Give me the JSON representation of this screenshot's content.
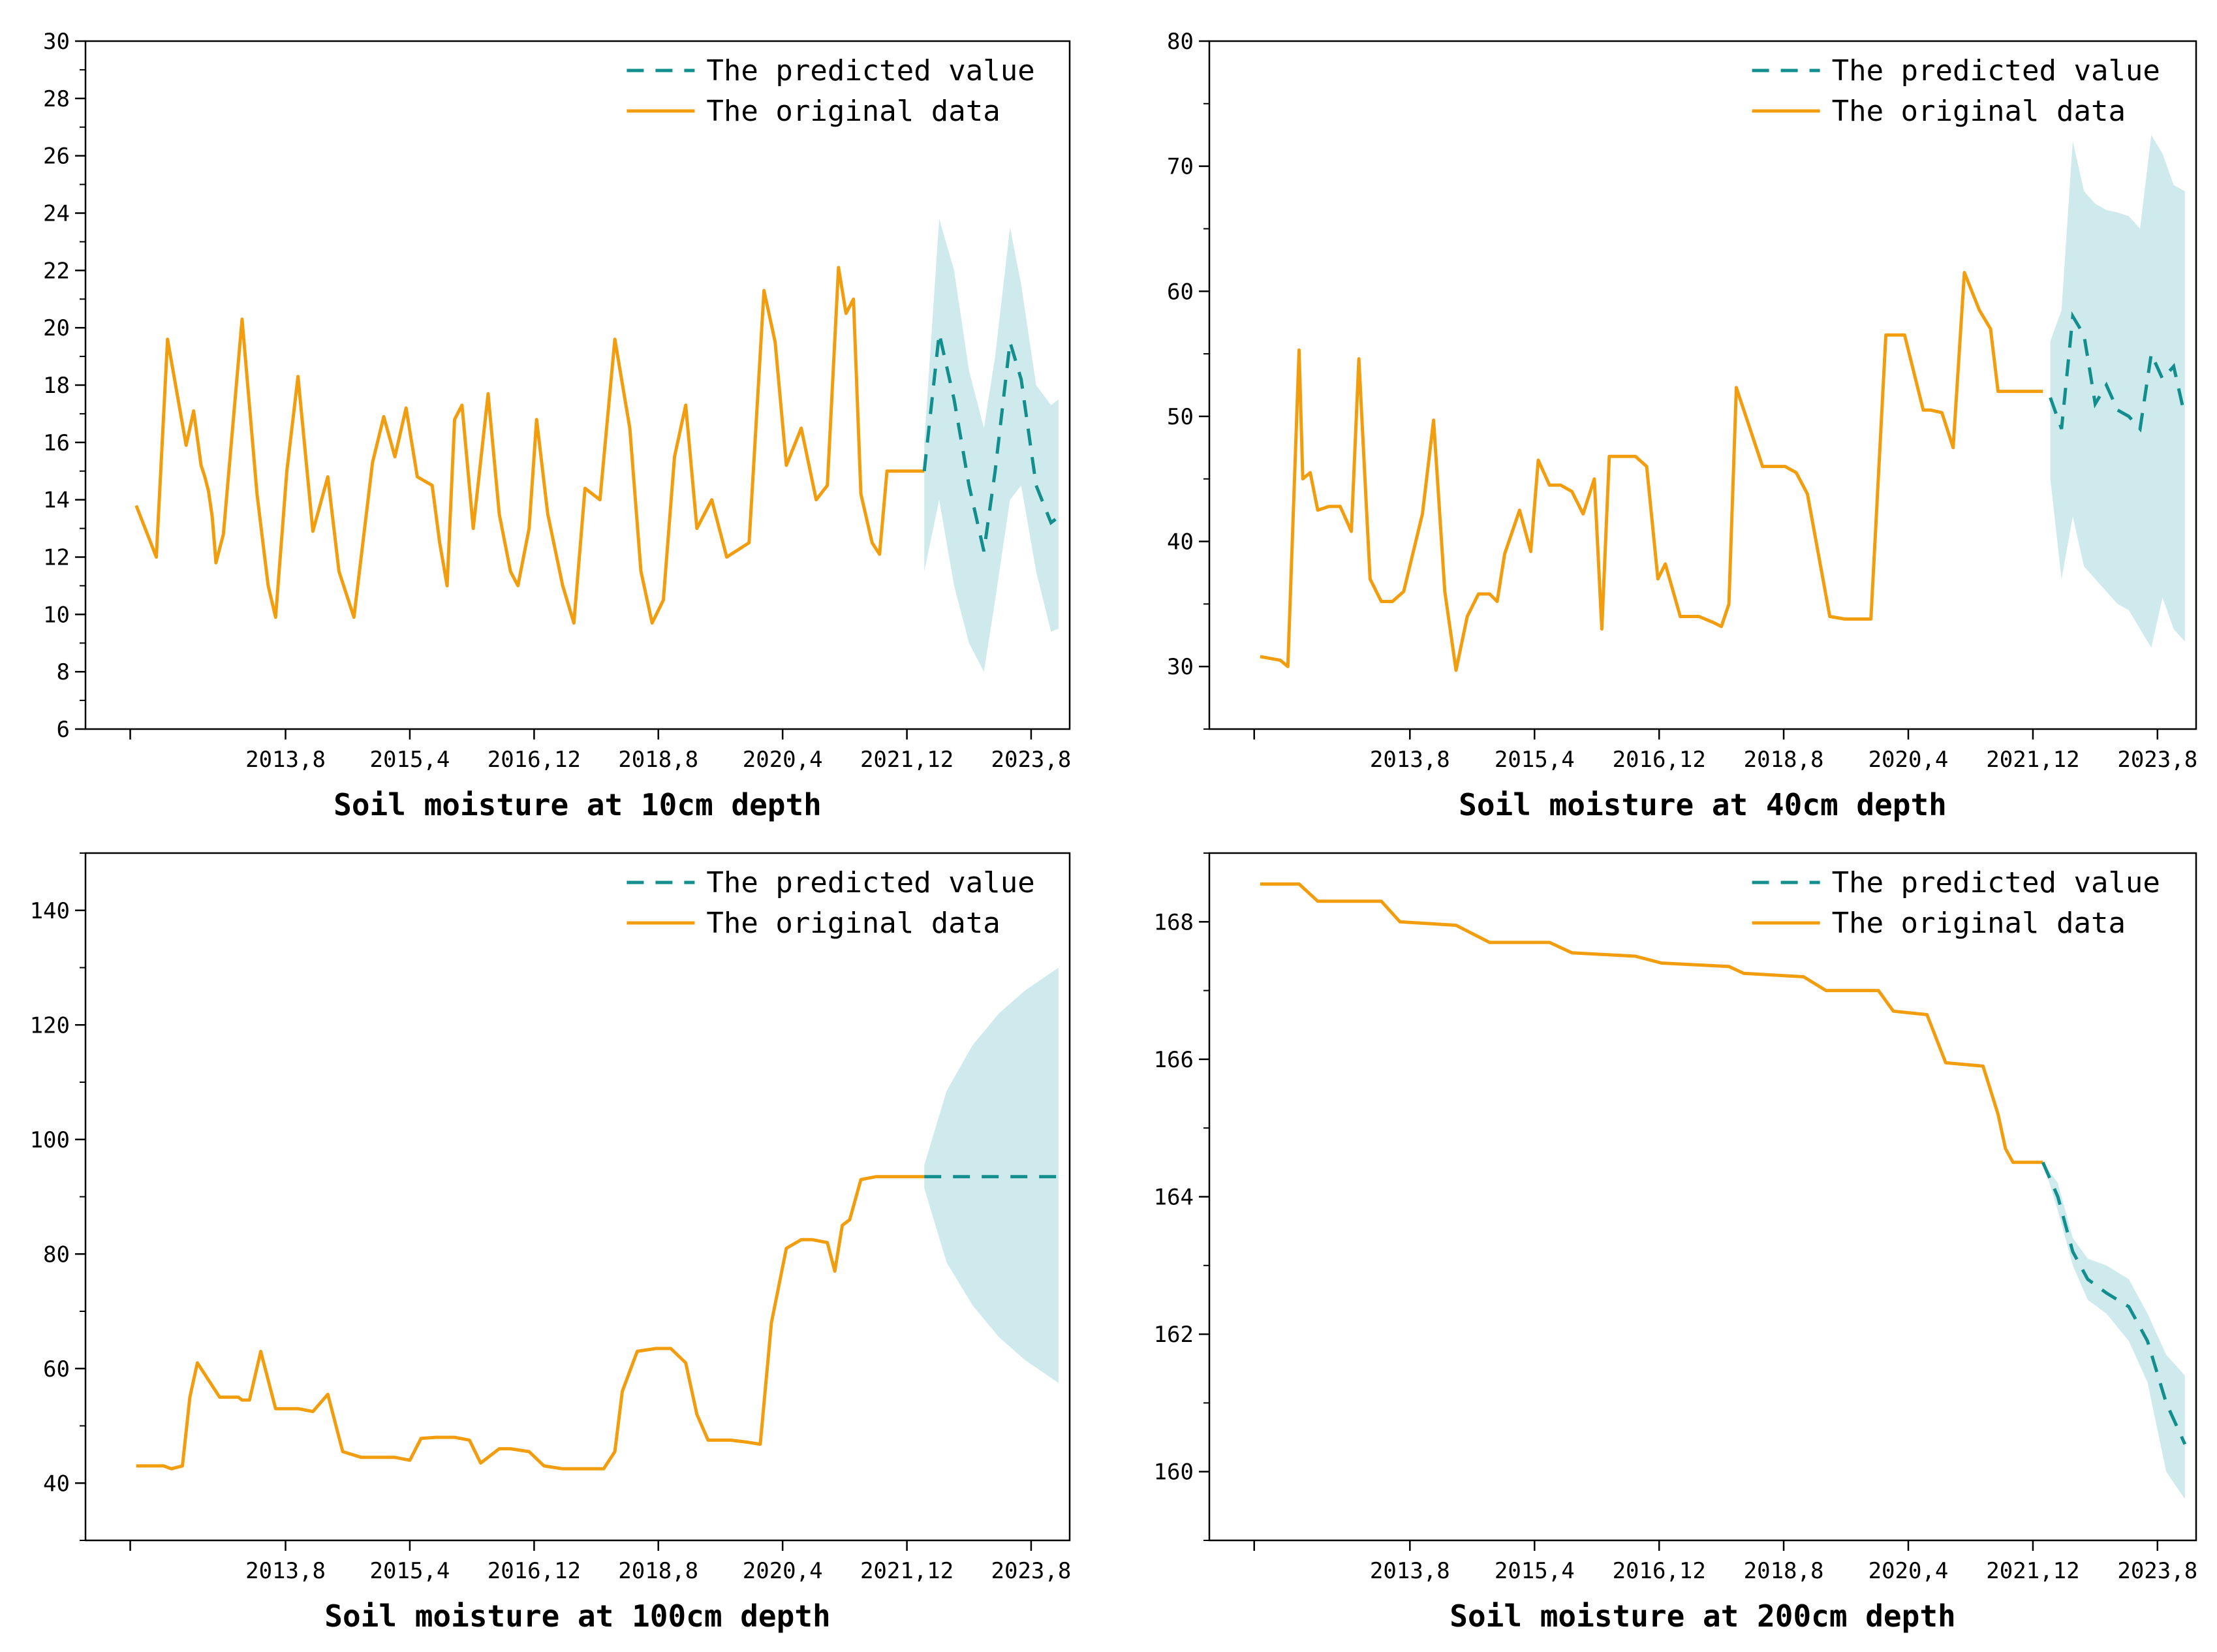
{
  "colors": {
    "original": "#F29D0E",
    "predicted": "#128E8E",
    "band": "#CFEAEC",
    "axis": "#000000"
  },
  "chart_data": [
    {
      "type": "line",
      "xlabel": "Soil moisture at 10cm depth",
      "ylabel": "",
      "ylim": [
        6,
        30
      ],
      "xlim": [
        2010.9,
        2024.1
      ],
      "xticks": [
        2011.5,
        2013.583,
        2015.25,
        2016.917,
        2018.583,
        2020.25,
        2021.917,
        2023.583
      ],
      "xtick_labels": [
        "",
        "2013,8",
        "2015,4",
        "2016,12",
        "2018,8",
        "2020,4",
        "2021,12",
        "2023,8"
      ],
      "yticks": [
        6,
        8,
        10,
        12,
        14,
        16,
        18,
        20,
        22,
        24,
        26,
        28,
        30
      ],
      "legend": [
        "The predicted value",
        "The original data"
      ],
      "legend_position": "top-right",
      "original": {
        "x": [
          2011.58,
          2011.85,
          2012.0,
          2012.25,
          2012.35,
          2012.45,
          2012.5,
          2012.55,
          2012.6,
          2012.65,
          2012.75,
          2013.0,
          2013.2,
          2013.35,
          2013.45,
          2013.6,
          2013.75,
          2013.95,
          2014.15,
          2014.3,
          2014.5,
          2014.75,
          2014.9,
          2015.05,
          2015.2,
          2015.35,
          2015.55,
          2015.65,
          2015.75,
          2015.85,
          2015.95,
          2016.1,
          2016.3,
          2016.45,
          2016.6,
          2016.7,
          2016.85,
          2016.95,
          2017.1,
          2017.3,
          2017.45,
          2017.6,
          2017.8,
          2018.0,
          2018.2,
          2018.35,
          2018.5,
          2018.65,
          2018.8,
          2018.95,
          2019.1,
          2019.3,
          2019.5,
          2019.8,
          2020.0,
          2020.15,
          2020.3,
          2020.5,
          2020.7,
          2020.85,
          2021.0,
          2021.1,
          2021.2,
          2021.3,
          2021.45,
          2021.55,
          2021.65,
          2021.75,
          2021.9,
          2022.05,
          2022.15
        ],
        "y": [
          13.8,
          12.0,
          19.6,
          15.9,
          17.1,
          15.2,
          14.8,
          14.3,
          13.4,
          11.8,
          12.8,
          20.3,
          14.2,
          11.0,
          9.9,
          15.0,
          18.3,
          12.9,
          14.8,
          11.5,
          9.9,
          15.3,
          16.9,
          15.5,
          17.2,
          14.8,
          14.5,
          12.5,
          11.0,
          16.8,
          17.3,
          13.0,
          17.7,
          13.5,
          11.5,
          11.0,
          13.0,
          16.8,
          13.5,
          11.0,
          9.7,
          14.4,
          14.0,
          19.6,
          16.5,
          11.5,
          9.7,
          10.5,
          15.5,
          17.3,
          13.0,
          14.0,
          12.0,
          12.5,
          21.3,
          19.5,
          15.2,
          16.5,
          14.0,
          14.5,
          22.1,
          20.5,
          21.0,
          14.2,
          12.5,
          12.1,
          15.0,
          15.0,
          15.0,
          15.0,
          15.0
        ]
      },
      "predicted": {
        "x": [
          2022.15,
          2022.35,
          2022.55,
          2022.75,
          2022.95,
          2023.1,
          2023.3,
          2023.45,
          2023.65,
          2023.85,
          2023.95
        ],
        "y": [
          15.0,
          19.8,
          17.5,
          14.5,
          12.2,
          15.0,
          19.5,
          18.2,
          14.5,
          13.2,
          13.4
        ],
        "upper": [
          16.0,
          23.8,
          22.0,
          18.5,
          16.5,
          19.0,
          23.5,
          21.5,
          18.0,
          17.3,
          17.5
        ],
        "lower": [
          11.5,
          14.0,
          11.0,
          9.0,
          8.0,
          10.5,
          14.0,
          14.5,
          11.5,
          9.4,
          9.5
        ]
      }
    },
    {
      "type": "line",
      "xlabel": "Soil moisture at 40cm depth",
      "ylabel": "",
      "ylim": [
        25,
        80
      ],
      "xlim": [
        2010.9,
        2024.1
      ],
      "xticks": [
        2011.5,
        2013.583,
        2015.25,
        2016.917,
        2018.583,
        2020.25,
        2021.917,
        2023.583
      ],
      "xtick_labels": [
        "",
        "2013,8",
        "2015,4",
        "2016,12",
        "2018,8",
        "2020,4",
        "2021,12",
        "2023,8"
      ],
      "yticks": [
        30,
        40,
        50,
        60,
        70,
        80
      ],
      "legend": [
        "The predicted value",
        "The original data"
      ],
      "legend_position": "top-right",
      "original": {
        "x": [
          2011.58,
          2011.85,
          2011.95,
          2012.1,
          2012.15,
          2012.25,
          2012.35,
          2012.5,
          2012.65,
          2012.8,
          2012.9,
          2013.05,
          2013.2,
          2013.35,
          2013.5,
          2013.75,
          2013.9,
          2014.05,
          2014.2,
          2014.35,
          2014.5,
          2014.65,
          2014.75,
          2014.85,
          2015.05,
          2015.2,
          2015.3,
          2015.45,
          2015.6,
          2015.75,
          2015.9,
          2016.05,
          2016.15,
          2016.25,
          2016.4,
          2016.6,
          2016.75,
          2016.9,
          2017.0,
          2017.2,
          2017.45,
          2017.65,
          2017.75,
          2017.85,
          2017.95,
          2018.3,
          2018.45,
          2018.6,
          2018.75,
          2018.9,
          2019.2,
          2019.4,
          2019.6,
          2019.75,
          2019.95,
          2020.2,
          2020.45,
          2020.55,
          2020.7,
          2020.85,
          2021.0,
          2021.2,
          2021.35,
          2021.45,
          2021.55,
          2021.7,
          2021.85,
          2022.05
        ],
        "y": [
          30.8,
          30.5,
          30.0,
          55.3,
          45.0,
          45.5,
          42.5,
          42.8,
          42.8,
          40.8,
          54.6,
          37.0,
          35.2,
          35.2,
          36.0,
          42.2,
          49.7,
          36.0,
          29.7,
          34.0,
          35.8,
          35.8,
          35.2,
          39.0,
          42.5,
          39.2,
          46.5,
          44.5,
          44.5,
          44.0,
          42.2,
          45.0,
          33.0,
          46.8,
          46.8,
          46.8,
          46.0,
          37.0,
          38.2,
          34.0,
          34.0,
          33.5,
          33.2,
          35.0,
          52.3,
          46.0,
          46.0,
          46.0,
          45.5,
          43.8,
          34.0,
          33.8,
          33.8,
          33.8,
          56.5,
          56.5,
          50.5,
          50.5,
          50.3,
          47.5,
          61.5,
          58.5,
          57.0,
          52.0,
          52.0,
          52.0,
          52.0,
          52.0
        ]
      },
      "predicted": {
        "x": [
          2022.15,
          2022.3,
          2022.45,
          2022.6,
          2022.75,
          2022.9,
          2023.05,
          2023.2,
          2023.35,
          2023.5,
          2023.65,
          2023.8,
          2023.95
        ],
        "y": [
          51.5,
          49.0,
          58.0,
          56.5,
          51.0,
          52.5,
          50.5,
          50.0,
          49.0,
          55.0,
          53.0,
          54.0,
          50.0
        ],
        "upper": [
          56.0,
          58.5,
          72.0,
          68.0,
          67.0,
          66.5,
          66.3,
          66.0,
          65.0,
          72.5,
          71.0,
          68.5,
          68.0
        ],
        "lower": [
          45.0,
          37.0,
          42.0,
          38.0,
          37.0,
          36.0,
          35.0,
          34.5,
          33.0,
          31.5,
          35.5,
          33.0,
          32.0
        ]
      }
    },
    {
      "type": "line",
      "xlabel": "Soil moisture at 100cm depth",
      "ylabel": "",
      "ylim": [
        30,
        150
      ],
      "xlim": [
        2010.9,
        2024.1
      ],
      "xticks": [
        2011.5,
        2013.583,
        2015.25,
        2016.917,
        2018.583,
        2020.25,
        2021.917,
        2023.583
      ],
      "xtick_labels": [
        "",
        "2013,8",
        "2015,4",
        "2016,12",
        "2018,8",
        "2020,4",
        "2021,12",
        "2023,8"
      ],
      "yticks": [
        40,
        60,
        80,
        100,
        120,
        140
      ],
      "legend": [
        "The predicted value",
        "The original data"
      ],
      "legend_position": "top-right",
      "original": {
        "x": [
          2011.58,
          2011.95,
          2012.05,
          2012.2,
          2012.3,
          2012.4,
          2012.7,
          2012.95,
          2013.0,
          2013.1,
          2013.25,
          2013.45,
          2013.75,
          2013.95,
          2014.15,
          2014.35,
          2014.6,
          2014.85,
          2015.05,
          2015.25,
          2015.4,
          2015.6,
          2015.85,
          2016.05,
          2016.2,
          2016.45,
          2016.6,
          2016.85,
          2017.05,
          2017.3,
          2017.55,
          2017.85,
          2018.0,
          2018.1,
          2018.3,
          2018.55,
          2018.75,
          2018.95,
          2019.1,
          2019.25,
          2019.55,
          2019.75,
          2019.95,
          2020.1,
          2020.3,
          2020.5,
          2020.65,
          2020.85,
          2020.95,
          2021.05,
          2021.15,
          2021.3,
          2021.5,
          2021.75,
          2022.15
        ],
        "y": [
          43,
          43,
          42.5,
          43,
          55,
          61,
          55,
          55,
          54.5,
          54.5,
          63,
          53,
          53,
          52.5,
          55.5,
          45.5,
          44.5,
          44.5,
          44.5,
          44,
          47.8,
          48,
          48,
          47.5,
          43.5,
          46,
          46,
          45.5,
          43,
          42.5,
          42.5,
          42.5,
          45.5,
          56,
          63,
          63.5,
          63.5,
          61,
          52,
          47.5,
          47.5,
          47.2,
          46.8,
          68,
          81,
          82.5,
          82.5,
          82,
          77,
          85,
          86,
          93,
          93.5,
          93.5,
          93.5
        ]
      },
      "predicted": {
        "x": [
          2022.15,
          2022.45,
          2022.8,
          2023.15,
          2023.5,
          2023.95
        ],
        "y": [
          93.5,
          93.5,
          93.5,
          93.5,
          93.5,
          93.5
        ],
        "upper": [
          95.5,
          108.5,
          116.5,
          122.0,
          126.0,
          130.0
        ],
        "lower": [
          91.5,
          78.5,
          71.0,
          65.5,
          61.5,
          57.5
        ]
      }
    },
    {
      "type": "line",
      "xlabel": "Soil moisture at 200cm depth",
      "ylabel": "",
      "ylim": [
        159,
        169
      ],
      "xlim": [
        2010.9,
        2024.1
      ],
      "xticks": [
        2011.5,
        2013.583,
        2015.25,
        2016.917,
        2018.583,
        2020.25,
        2021.917,
        2023.583
      ],
      "xtick_labels": [
        "",
        "2013,8",
        "2015,4",
        "2016,12",
        "2018,8",
        "2020,4",
        "2021,12",
        "2023,8"
      ],
      "yticks": [
        160,
        162,
        164,
        166,
        168
      ],
      "legend": [
        "The predicted value",
        "The original data"
      ],
      "legend_position": "top-right",
      "original": {
        "x": [
          2011.58,
          2012.1,
          2012.35,
          2013.2,
          2013.45,
          2014.2,
          2014.65,
          2015.45,
          2015.75,
          2016.6,
          2016.95,
          2017.85,
          2018.05,
          2018.85,
          2019.15,
          2019.85,
          2020.05,
          2020.5,
          2020.75,
          2021.25,
          2021.45,
          2021.55,
          2021.65,
          2022.05
        ],
        "y": [
          168.55,
          168.55,
          168.3,
          168.3,
          168.0,
          167.95,
          167.7,
          167.7,
          167.55,
          167.5,
          167.4,
          167.35,
          167.25,
          167.2,
          167.0,
          167.0,
          166.7,
          166.65,
          165.95,
          165.9,
          165.2,
          164.7,
          164.5,
          164.5
        ]
      },
      "predicted": {
        "x": [
          2022.05,
          2022.25,
          2022.45,
          2022.65,
          2022.9,
          2023.2,
          2023.45,
          2023.7,
          2023.95
        ],
        "y": [
          164.5,
          164.0,
          163.2,
          162.8,
          162.6,
          162.4,
          161.9,
          161.0,
          160.4
        ],
        "upper": [
          164.5,
          164.2,
          163.4,
          163.1,
          163.0,
          162.8,
          162.3,
          161.7,
          161.4
        ],
        "lower": [
          164.5,
          163.8,
          163.0,
          162.5,
          162.3,
          161.9,
          161.3,
          160.0,
          159.6
        ]
      }
    }
  ]
}
